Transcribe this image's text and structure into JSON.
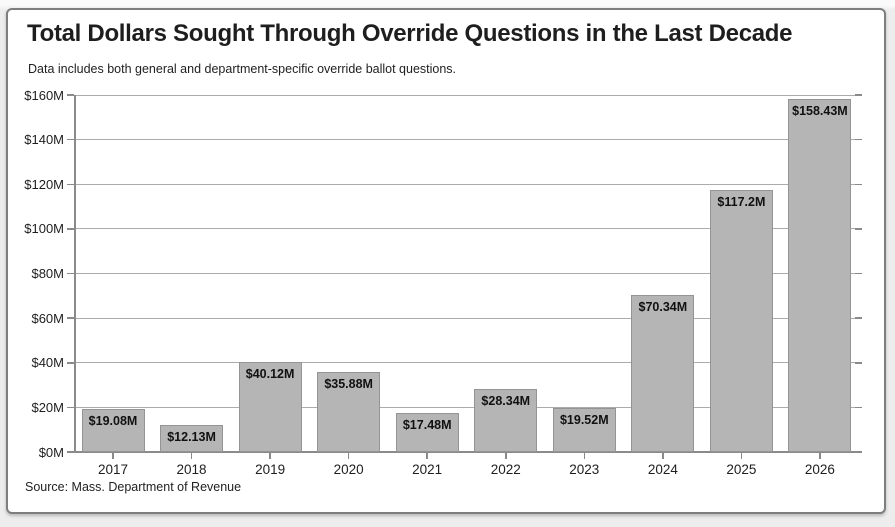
{
  "chart_data": {
    "type": "bar",
    "title": "Total Dollars Sought Through Override Questions in the Last Decade",
    "subtitle": "Data includes both general and department-specific override ballot questions.",
    "source": "Source: Mass. Department of Revenue",
    "categories": [
      "2017",
      "2018",
      "2019",
      "2020",
      "2021",
      "2022",
      "2023",
      "2024",
      "2025",
      "2026"
    ],
    "values": [
      19.08,
      12.13,
      40.12,
      35.88,
      17.48,
      28.34,
      19.52,
      70.34,
      117.2,
      158.43
    ],
    "bar_labels": [
      "$19.08M",
      "$12.13M",
      "$40.12M",
      "$35.88M",
      "$17.48M",
      "$28.34M",
      "$19.52M",
      "$70.34M",
      "$117.2M",
      "$158.43M"
    ],
    "y_tick_labels": [
      "$0M",
      "$20M",
      "$40M",
      "$60M",
      "$80M",
      "$100M",
      "$120M",
      "$140M",
      "$160M"
    ],
    "y_tick_values": [
      0,
      20,
      40,
      60,
      80,
      100,
      120,
      140,
      160
    ],
    "ylim": [
      0,
      160
    ],
    "grid": true,
    "legend": "none",
    "colors": {
      "bar_fill": "#b5b5b5",
      "bar_border": "#949494",
      "gridline": "#ababab",
      "axis": "#8a8a8a",
      "text": "#1e1e1e",
      "card_background": "#ffffff",
      "page_background": "#ededed"
    }
  }
}
